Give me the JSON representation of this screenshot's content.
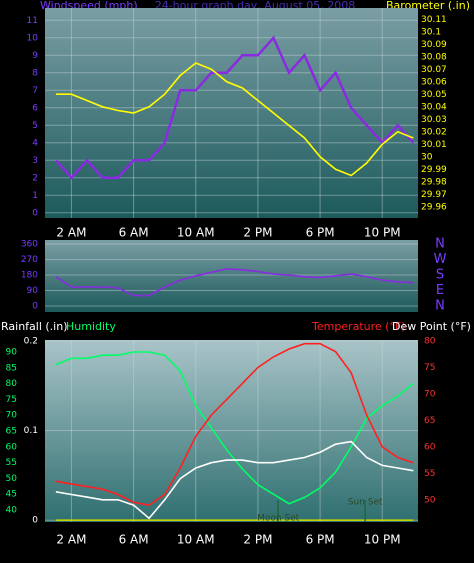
{
  "chart_data": [
    {
      "type": "line",
      "title": "24-hour graph day,  August 05, 2008",
      "x": [
        1,
        2,
        3,
        4,
        5,
        6,
        7,
        8,
        9,
        10,
        11,
        12,
        13,
        14,
        15,
        16,
        17,
        18,
        19,
        20,
        21,
        22,
        23,
        24
      ],
      "xlim": [
        0.3,
        24.3
      ],
      "xticks": [
        {
          "value": 2,
          "label": "2 AM"
        },
        {
          "value": 6,
          "label": "6 AM"
        },
        {
          "value": 10,
          "label": "10 AM"
        },
        {
          "value": 14,
          "label": "2 PM"
        },
        {
          "value": 18,
          "label": "6 PM"
        },
        {
          "value": 22,
          "label": "10 PM"
        }
      ],
      "ylim": [
        -0.3,
        11.7
      ],
      "yticks": [
        0,
        1,
        2,
        3,
        4,
        5,
        6,
        7,
        8,
        9,
        10,
        11
      ],
      "y2lim": [
        29.951,
        30.119
      ],
      "y2ticks": [
        29.96,
        29.97,
        29.98,
        29.99,
        30,
        30.01,
        30.02,
        30.03,
        30.04,
        30.05,
        30.06,
        30.07,
        30.08,
        30.09,
        30.1,
        30.11
      ],
      "grid": true,
      "series": [
        {
          "name": "Windspeed (mph)",
          "color": "#8a2be2",
          "values": [
            3,
            2,
            3,
            2,
            2,
            3,
            3,
            4,
            7,
            7,
            8,
            8,
            9,
            9,
            10,
            8,
            9,
            7,
            8,
            6,
            5,
            4,
            5,
            4
          ]
        },
        {
          "name": "Barometer (.in)",
          "color": "#ffff00",
          "axis": "y2",
          "values": [
            30.05,
            30.05,
            30.045,
            30.04,
            30.037,
            30.035,
            30.04,
            30.05,
            30.065,
            30.075,
            30.07,
            30.06,
            30.055,
            30.045,
            30.035,
            30.025,
            30.015,
            30.0,
            29.99,
            29.985,
            29.995,
            30.01,
            30.02,
            30.015
          ]
        }
      ]
    },
    {
      "type": "line",
      "x": [
        1,
        2,
        3,
        4,
        5,
        6,
        7,
        8,
        9,
        10,
        11,
        12,
        13,
        14,
        15,
        16,
        17,
        18,
        19,
        20,
        21,
        22,
        23,
        24
      ],
      "xlim": [
        0.3,
        24.3
      ],
      "ylim": [
        -35,
        383
      ],
      "yticks": [
        0,
        90,
        180,
        270,
        360
      ],
      "y2lim": [
        -35,
        383
      ],
      "y2ticks": [
        {
          "value": 360,
          "label": "N"
        },
        {
          "value": 270,
          "label": "W"
        },
        {
          "value": 180,
          "label": "S"
        },
        {
          "value": 90,
          "label": "E"
        },
        {
          "value": 0,
          "label": "N"
        }
      ],
      "grid": true,
      "series": [
        {
          "color": "#8a2be2",
          "values": [
            170,
            110,
            110,
            110,
            105,
            60,
            60,
            110,
            150,
            175,
            195,
            215,
            210,
            200,
            185,
            180,
            170,
            165,
            175,
            185,
            170,
            150,
            140,
            135
          ]
        }
      ]
    },
    {
      "type": "line",
      "x": [
        1,
        2,
        3,
        4,
        5,
        6,
        7,
        8,
        9,
        10,
        11,
        12,
        13,
        14,
        15,
        16,
        17,
        18,
        19,
        20,
        21,
        22,
        23,
        24
      ],
      "xlim": [
        0.3,
        24.3
      ],
      "xticks": [
        {
          "value": 2,
          "label": "2 AM"
        },
        {
          "value": 6,
          "label": "6 AM"
        },
        {
          "value": 10,
          "label": "10 AM"
        },
        {
          "value": 14,
          "label": "2 PM"
        },
        {
          "value": 18,
          "label": "6 PM"
        },
        {
          "value": 22,
          "label": "10 PM"
        }
      ],
      "ylim": [
        -0.002,
        0.201
      ],
      "yticks": [
        0,
        0.1,
        0.2
      ],
      "y2lim": [
        45.8,
        80.2
      ],
      "y2ticks": [
        50,
        55,
        60,
        65,
        70,
        75,
        80
      ],
      "y3lim": [
        36.2,
        93.8
      ],
      "y3ticks": [
        40,
        45,
        50,
        55,
        60,
        65,
        70,
        75,
        80,
        85,
        90
      ],
      "grid": true,
      "series": [
        {
          "name": "Rainfall (.in)",
          "color": "#c8d400",
          "values": [
            0,
            0,
            0,
            0,
            0,
            0,
            0,
            0,
            0,
            0,
            0,
            0,
            0,
            0,
            0,
            0,
            0,
            0,
            0,
            0,
            0,
            0,
            0,
            0
          ]
        },
        {
          "name": "Humidity",
          "color": "#00ff66",
          "axis": "y3",
          "values": [
            86,
            88,
            88,
            89,
            89,
            90,
            90,
            89,
            84,
            73,
            66,
            59,
            53,
            48,
            45,
            42,
            44,
            47,
            52,
            60,
            69,
            73,
            76,
            80
          ]
        },
        {
          "name": "Temperature (°F)",
          "color": "#ff2020",
          "axis": "y2",
          "values": [
            53.5,
            53,
            52.5,
            52,
            51,
            49.5,
            49,
            51,
            56,
            62,
            66,
            69,
            72,
            75,
            77,
            78.5,
            79.5,
            79.5,
            78,
            74,
            66,
            60,
            58,
            57
          ]
        },
        {
          "name": "Dew Point (°F)",
          "color": "#ffffff",
          "axis": "y2",
          "values": [
            51.5,
            51,
            50.5,
            50,
            50,
            49,
            46.5,
            50,
            54,
            56,
            57,
            57.5,
            57.5,
            57,
            57,
            57.5,
            58,
            59,
            60.5,
            61,
            58,
            56.5,
            56,
            55.5
          ]
        }
      ],
      "annotations": [
        {
          "text": "Moon Set",
          "x": 15.3
        },
        {
          "text": "Sun Set",
          "x": 20.9
        }
      ]
    }
  ]
}
